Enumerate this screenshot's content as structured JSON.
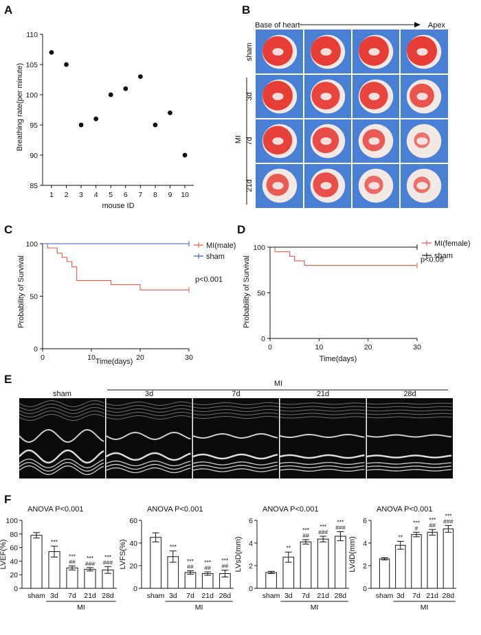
{
  "panel_labels": [
    "A",
    "B",
    "C",
    "D",
    "E",
    "F"
  ],
  "panel_a": {
    "chart_data": {
      "type": "scatter",
      "title": "",
      "xlabel": "mouse ID",
      "ylabel": "Breathing rate(per minute)",
      "x": [
        1,
        2,
        3,
        4,
        5,
        6,
        7,
        8,
        9,
        10
      ],
      "y": [
        107,
        105,
        95,
        96,
        100,
        101,
        103,
        95,
        97,
        90
      ],
      "ylim": [
        85,
        110
      ],
      "xticks": [
        "1",
        "2",
        "3",
        "4",
        "5",
        "6",
        "7",
        "8",
        "9",
        "10"
      ],
      "yticks": [
        "85",
        "90",
        "95",
        "100",
        "105",
        "110"
      ]
    }
  },
  "panel_b": {
    "direction_start": "Base of heart",
    "direction_end": "Apex",
    "group_mi": "MI",
    "row_labels": [
      "sham",
      "3d",
      "7d",
      "21d"
    ],
    "background_color": "#4a7fd6",
    "stain_color": "#e5302a",
    "pale_color": "#f2e8e4"
  },
  "panel_c": {
    "chart_data": {
      "type": "line",
      "xlabel": "Time(days)",
      "ylabel": "Probability of Survival",
      "xlim": [
        0,
        30
      ],
      "ylim": [
        0,
        100
      ],
      "xticks": [
        "0",
        "10",
        "20",
        "30"
      ],
      "yticks": [
        "0",
        "50",
        "100"
      ],
      "series": [
        {
          "name": "MI(male)",
          "color": "#e05a4a",
          "steps": [
            [
              0,
              100
            ],
            [
              1,
              96
            ],
            [
              3,
              91
            ],
            [
              4,
              87
            ],
            [
              5,
              83
            ],
            [
              6,
              78
            ],
            [
              7,
              65
            ],
            [
              14,
              61
            ],
            [
              20,
              56
            ],
            [
              30,
              56
            ]
          ]
        },
        {
          "name": "sham",
          "color": "#3b5bbf",
          "steps": [
            [
              0,
              100
            ],
            [
              30,
              100
            ]
          ]
        }
      ],
      "annotation": "p<0.001"
    }
  },
  "panel_d": {
    "chart_data": {
      "type": "line",
      "xlabel": "Time(days)",
      "ylabel": "Probability of Survival",
      "xlim": [
        0,
        30
      ],
      "ylim": [
        0,
        100
      ],
      "xticks": [
        "0",
        "10",
        "20",
        "30"
      ],
      "yticks": [
        "0",
        "50",
        "100"
      ],
      "series": [
        {
          "name": "MI(female)",
          "color": "#e05a4a",
          "steps": [
            [
              0,
              100
            ],
            [
              1,
              95
            ],
            [
              4,
              90
            ],
            [
              5,
              85
            ],
            [
              7,
              80
            ],
            [
              30,
              80
            ]
          ]
        },
        {
          "name": "sham",
          "color": "#111111",
          "steps": [
            [
              0,
              100
            ],
            [
              30,
              100
            ]
          ]
        }
      ],
      "annotation": "p<0.05"
    }
  },
  "panel_e": {
    "group_mi": "MI",
    "labels": [
      "sham",
      "3d",
      "7d",
      "21d",
      "28d"
    ]
  },
  "panel_f": {
    "chart_data": [
      {
        "type": "bar",
        "title": "ANOVA  P<0.001",
        "ylabel": "LVEF(%)",
        "categories": [
          "sham",
          "3d",
          "7d",
          "21d",
          "28d"
        ],
        "values": [
          78,
          54,
          30,
          28,
          27
        ],
        "errors": [
          4,
          8,
          3,
          2.5,
          5
        ],
        "ylim": [
          0,
          100
        ],
        "yticks": [
          "0",
          "20",
          "40",
          "60",
          "80",
          "100"
        ],
        "stars": [
          "",
          "***",
          "***",
          "***",
          "***"
        ],
        "hashes": [
          "",
          "",
          "##",
          "###",
          "###"
        ],
        "group_label": "MI"
      },
      {
        "type": "bar",
        "title": "ANOVA  P<0.001",
        "ylabel": "LVFS(%)",
        "categories": [
          "sham",
          "3d",
          "7d",
          "21d",
          "28d"
        ],
        "values": [
          45,
          28,
          14,
          13,
          13
        ],
        "errors": [
          4,
          5,
          1.5,
          1.5,
          3
        ],
        "ylim": [
          0,
          60
        ],
        "yticks": [
          "0",
          "20",
          "40",
          "60"
        ],
        "stars": [
          "",
          "***",
          "***",
          "***",
          "***"
        ],
        "hashes": [
          "",
          "",
          "##",
          "##",
          "##"
        ],
        "group_label": "MI"
      },
      {
        "type": "bar",
        "title": "ANOVA  P<0.001",
        "ylabel": "LVsD(mm)",
        "categories": [
          "sham",
          "3d",
          "7d",
          "21d",
          "28d"
        ],
        "values": [
          1.4,
          2.75,
          4.1,
          4.35,
          4.6
        ],
        "errors": [
          0.1,
          0.45,
          0.2,
          0.25,
          0.4
        ],
        "ylim": [
          0,
          6
        ],
        "yticks": [
          "0",
          "2",
          "4",
          "6"
        ],
        "stars": [
          "",
          "**",
          "***",
          "***",
          "***"
        ],
        "hashes": [
          "",
          "",
          "##",
          "###",
          "###"
        ],
        "group_label": "MI"
      },
      {
        "type": "bar",
        "title": "ANOVA  P<0.001",
        "ylabel": "LVdD(mm)",
        "categories": [
          "sham",
          "3d",
          "7d",
          "21d",
          "28d"
        ],
        "values": [
          2.6,
          3.8,
          4.75,
          4.95,
          5.25
        ],
        "errors": [
          0.1,
          0.35,
          0.2,
          0.25,
          0.3
        ],
        "ylim": [
          0,
          6
        ],
        "yticks": [
          "0",
          "2",
          "4",
          "6"
        ],
        "stars": [
          "",
          "**",
          "***",
          "***",
          "***"
        ],
        "hashes": [
          "",
          "",
          "#",
          "##",
          "###"
        ],
        "group_label": "MI"
      }
    ]
  }
}
